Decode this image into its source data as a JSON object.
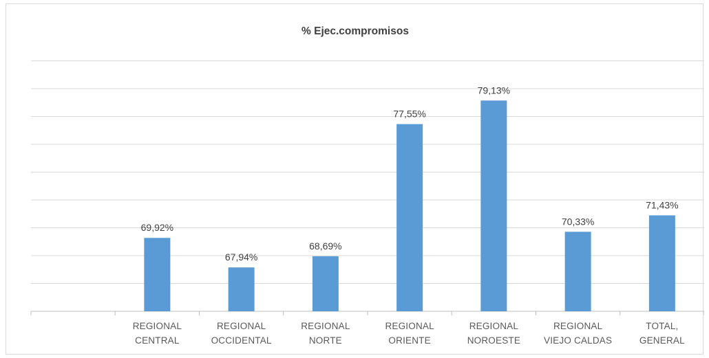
{
  "chart_data": {
    "type": "bar",
    "title": "% Ejec.compromisos",
    "xlabel": "",
    "ylabel": "",
    "categories": [
      [
        "",
        ""
      ],
      [
        "REGIONAL",
        "CENTRAL"
      ],
      [
        "REGIONAL",
        "OCCIDENTAL"
      ],
      [
        "REGIONAL",
        "NORTE"
      ],
      [
        "REGIONAL",
        "ORIENTE"
      ],
      [
        "REGIONAL",
        "NOROESTE"
      ],
      [
        "REGIONAL",
        "VIEJO CALDAS"
      ],
      [
        "TOTAL,",
        "GENERAL"
      ]
    ],
    "values": [
      null,
      69.92,
      67.94,
      68.69,
      77.55,
      79.13,
      70.33,
      71.43
    ],
    "data_labels": [
      "",
      "69,92%",
      "67,94%",
      "68,69%",
      "77,55%",
      "79,13%",
      "70,33%",
      "71,43%"
    ],
    "ylim": [
      65,
      82
    ],
    "gridlines": 9,
    "grid": true,
    "legend": "none",
    "bar_color": "#5b9bd5"
  }
}
